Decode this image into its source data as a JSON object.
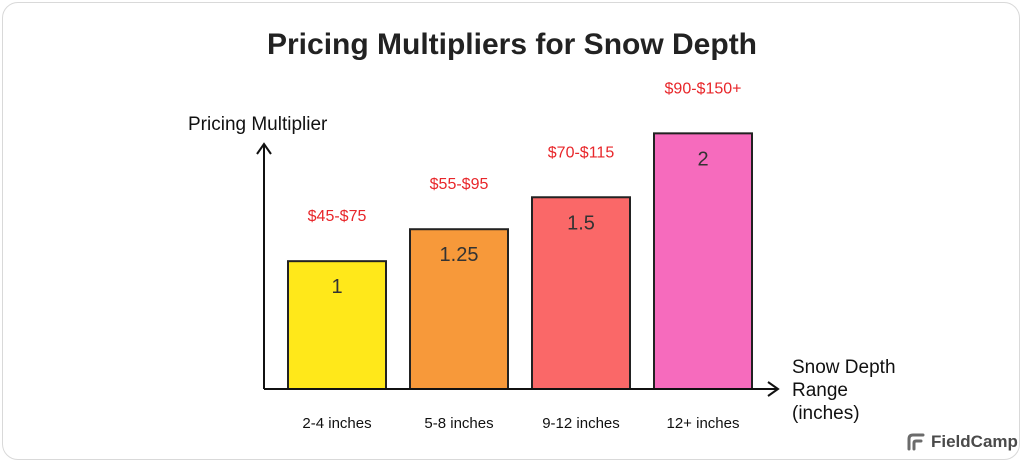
{
  "title": "Pricing Multipliers for Snow Depth",
  "brand": {
    "name": "FieldCamp",
    "icon": "fieldcamp-logo-icon"
  },
  "colors": {
    "price_label": "#e8262a",
    "axis": "#111111",
    "bar_stroke": "#222222"
  },
  "chart_data": {
    "type": "bar",
    "title": "Pricing Multipliers for Snow Depth",
    "ylabel": "Pricing Multiplier",
    "xlabel": "Snow Depth Range (inches)",
    "xlabel_lines": [
      "Snow Depth",
      "Range",
      "(inches)"
    ],
    "categories": [
      "2-4 inches",
      "5-8 inches",
      "9-12 inches",
      "12+ inches"
    ],
    "values": [
      1,
      1.25,
      1.5,
      2
    ],
    "value_labels": [
      "1",
      "1.25",
      "1.5",
      "2"
    ],
    "price_labels": [
      "$45-$75",
      "$55-$95",
      "$70-$115",
      "$90-$150+"
    ],
    "bar_colors": [
      "#ffe81a",
      "#f7993a",
      "#fa6868",
      "#f66bbd"
    ],
    "ylim": [
      0,
      2.3
    ],
    "grid": false,
    "legend": "none"
  }
}
